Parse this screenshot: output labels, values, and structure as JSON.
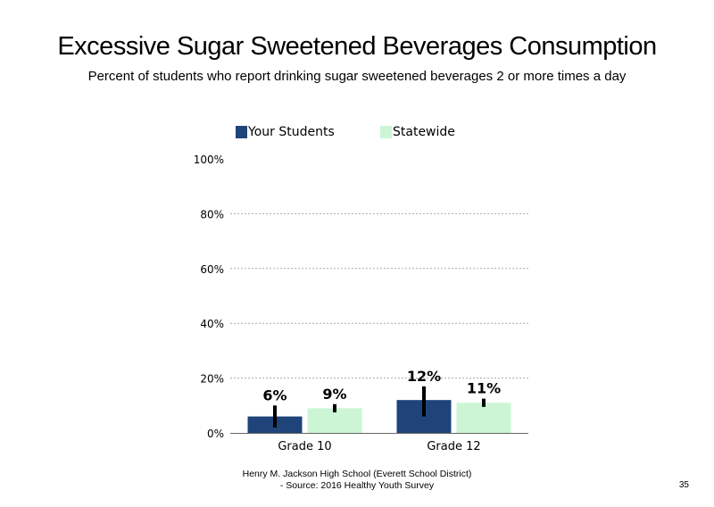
{
  "title": "Excessive Sugar Sweetened Beverages Consumption",
  "subtitle": "Percent of students who report drinking sugar sweetened beverages 2 or more times a day",
  "footer": {
    "line1": "Henry M. Jackson High School (Everett School District)",
    "line2": "- Source: 2016 Healthy Youth Survey"
  },
  "page_number": "35",
  "colors": {
    "your_students": "#1f4479",
    "statewide": "#ccf5d6",
    "grid": "#aaaaaa"
  },
  "chart_data": {
    "type": "bar",
    "categories": [
      "Grade 10",
      "Grade 12"
    ],
    "series": [
      {
        "name": "Your Students",
        "values": [
          6,
          12
        ],
        "labels": [
          "6%",
          "12%"
        ],
        "error_low": [
          2,
          6
        ],
        "error_high": [
          10,
          17
        ]
      },
      {
        "name": "Statewide",
        "values": [
          9,
          11
        ],
        "labels": [
          "9%",
          "11%"
        ],
        "error_low": [
          7.5,
          9.5
        ],
        "error_high": [
          10.5,
          12.5
        ]
      }
    ],
    "ylim": [
      0,
      100
    ],
    "yticks": [
      0,
      20,
      40,
      60,
      80,
      100
    ],
    "ytick_labels": [
      "0%",
      "20%",
      "40%",
      "60%",
      "80%",
      "100%"
    ],
    "grid": true,
    "legend_position": "top"
  }
}
